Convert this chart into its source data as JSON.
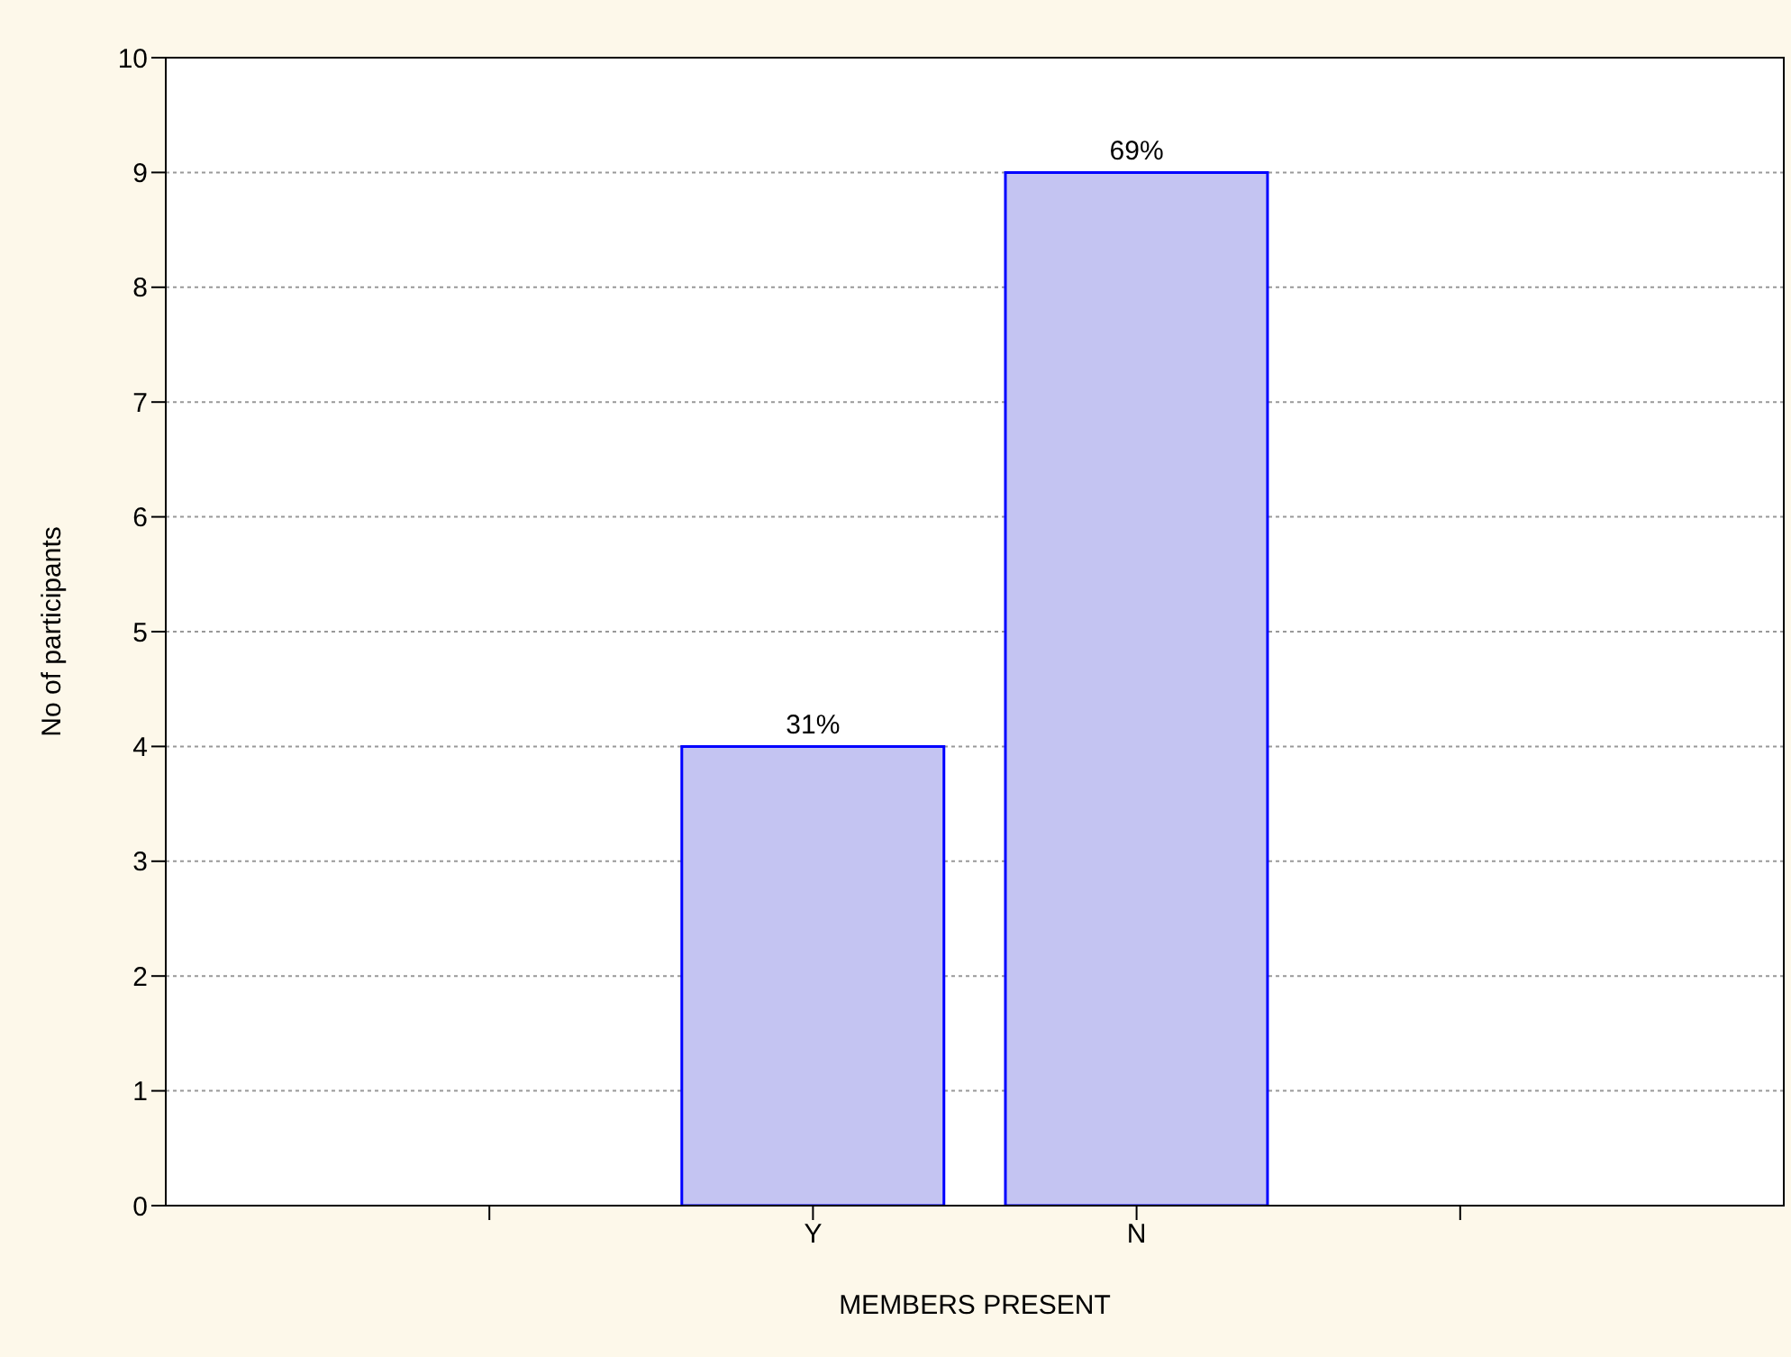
{
  "chart_data": {
    "type": "bar",
    "xlabel": "MEMBERS PRESENT",
    "ylabel": "No of participants",
    "categories": [
      null,
      "Y",
      "N",
      null
    ],
    "values": [
      null,
      4,
      9,
      null
    ],
    "annotations": [
      {
        "text": "31%",
        "x": "Y",
        "y": 4
      },
      {
        "text": "69%",
        "x": "N",
        "y": 9
      }
    ],
    "color": "#c4c4f2",
    "ylim": [
      0,
      10
    ],
    "yticks": [
      0,
      1,
      2,
      3,
      4,
      5,
      6,
      7,
      8,
      9,
      10
    ],
    "grid": "y",
    "legend": false
  }
}
